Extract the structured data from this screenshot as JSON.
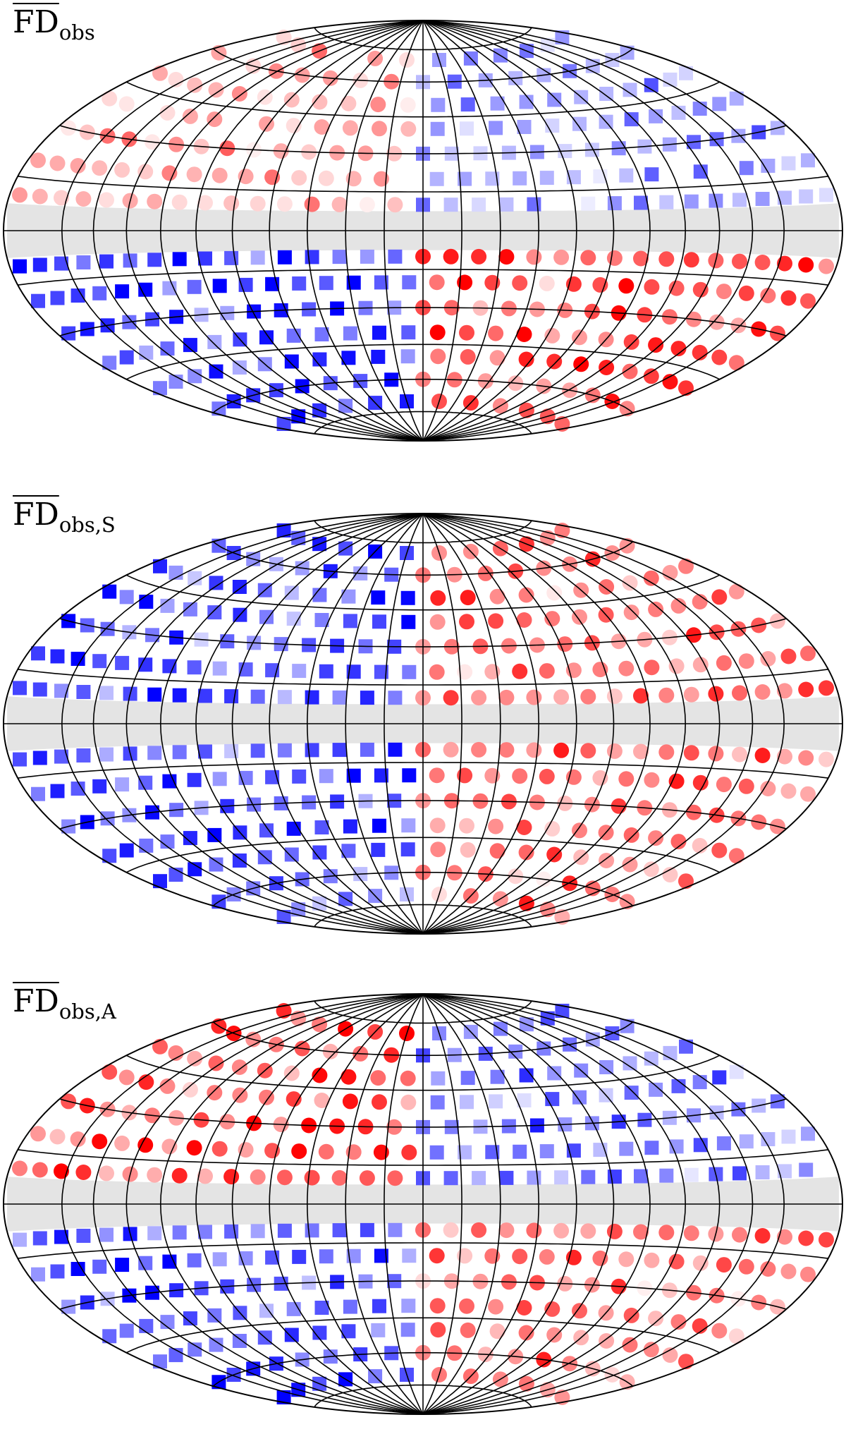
{
  "panels": [
    {
      "title_main": "FD",
      "title_sub": "obs"
    },
    {
      "title_main": "FD",
      "title_sub": "obs,S"
    },
    {
      "title_main": "FD",
      "title_sub": "obs,A"
    }
  ],
  "colors": {
    "positive": "#ff0000",
    "negative": "#0000ff",
    "masked_band": "#e4e4e4",
    "grid": "#000000"
  },
  "icons": {
    "positive_marker": "circle",
    "negative_marker": "square"
  }
}
